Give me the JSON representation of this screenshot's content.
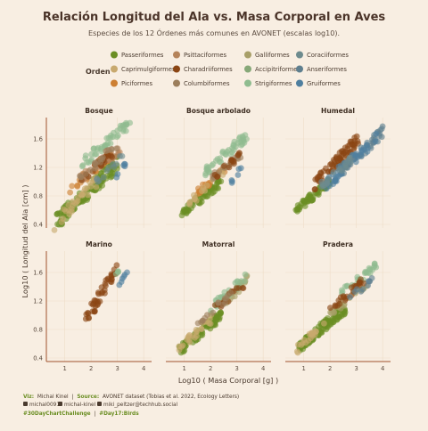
{
  "title": "Relación Longitud del Ala vs. Masa Corporal en Aves",
  "subtitle": "Especies de los 12 Órdenes más comunes en AVONET (escalas log10).",
  "legend": {
    "title": "Orden",
    "items": [
      {
        "label": "Passeriformes",
        "color": "#6b8e23"
      },
      {
        "label": "Psittaciformes",
        "color": "#b5835a"
      },
      {
        "label": "Galliformes",
        "color": "#a89f68"
      },
      {
        "label": "Coraciiformes",
        "color": "#6e8b8e"
      },
      {
        "label": "Caprimulgiformes",
        "color": "#c8a96e"
      },
      {
        "label": "Charadriiformes",
        "color": "#8b4513"
      },
      {
        "label": "Accipitriformes",
        "color": "#87a878"
      },
      {
        "label": "Anseriformes",
        "color": "#5f7f8f"
      },
      {
        "label": "Piciformes",
        "color": "#cd7f32"
      },
      {
        "label": "Columbiformes",
        "color": "#9c7e5c"
      },
      {
        "label": "Strigiformes",
        "color": "#8fbc8f"
      },
      {
        "label": "Gruiformes",
        "color": "#4f7f9f"
      }
    ]
  },
  "axes": {
    "xlabel": "Log10 ( Masa Corporal [g] )",
    "ylabel": "Log10 ( Longitud del Ala [cm] )",
    "x_ticks": [
      "1",
      "2",
      "3",
      "4"
    ],
    "y_ticks": [
      "0.4",
      "0.8",
      "1.2",
      "1.6"
    ]
  },
  "caption": {
    "viz_label": "Viz:",
    "viz_author": "Michal Kinel",
    "source_label": "Source:",
    "source_text": "AVONET dataset (Tobias et al. 2022, Ecology Letters)",
    "github": "michal0091",
    "linkedin": "michal-kinel",
    "mastodon": "miki_peltzer@techhub.social",
    "hashtag1": "#30DayChartChallenge",
    "hashtag2": "#Day17:Birds"
  },
  "chart_data": {
    "type": "scatter",
    "xlabel": "Log10 ( Masa Corporal [g] )",
    "ylabel": "Log10 ( Longitud del Ala [cm] )",
    "xlim": [
      0.3,
      4.3
    ],
    "ylim": [
      0.35,
      1.9
    ],
    "grid": true,
    "legend_position": "top",
    "panels": [
      {
        "name": "Bosque",
        "groups": [
          {
            "order": "Passeriformes",
            "x": [
              0.7,
              3.0
            ],
            "y": [
              0.45,
              1.25
            ],
            "n": 120
          },
          {
            "order": "Caprimulgiformes",
            "x": [
              0.6,
              2.2
            ],
            "y": [
              0.4,
              1.0
            ],
            "n": 30
          },
          {
            "order": "Piciformes",
            "x": [
              1.2,
              2.8
            ],
            "y": [
              0.9,
              1.4
            ],
            "n": 35
          },
          {
            "order": "Psittaciformes",
            "x": [
              1.6,
              3.1
            ],
            "y": [
              1.05,
              1.45
            ],
            "n": 35
          },
          {
            "order": "Strigiformes",
            "x": [
              1.6,
              3.6
            ],
            "y": [
              1.25,
              1.85
            ],
            "n": 45
          },
          {
            "order": "Charadriiformes",
            "x": [
              1.5,
              2.8
            ],
            "y": [
              1.0,
              1.4
            ],
            "n": 20
          },
          {
            "order": "Columbiformes",
            "x": [
              1.5,
              3.0
            ],
            "y": [
              1.05,
              1.5
            ],
            "n": 20
          },
          {
            "order": "Coraciiformes",
            "x": [
              2.2,
              3.2
            ],
            "y": [
              1.0,
              1.35
            ],
            "n": 12
          },
          {
            "order": "Gruiformes",
            "x": [
              2.9,
              3.3
            ],
            "y": [
              1.05,
              1.25
            ],
            "n": 6
          }
        ]
      },
      {
        "name": "Bosque arbolado",
        "groups": [
          {
            "order": "Passeriformes",
            "x": [
              0.9,
              2.4
            ],
            "y": [
              0.55,
              1.0
            ],
            "n": 60
          },
          {
            "order": "Piciformes",
            "x": [
              1.5,
              2.6
            ],
            "y": [
              0.85,
              1.2
            ],
            "n": 25
          },
          {
            "order": "Caprimulgiformes",
            "x": [
              1.2,
              2.5
            ],
            "y": [
              0.7,
              1.15
            ],
            "n": 20
          },
          {
            "order": "Strigiformes",
            "x": [
              1.8,
              3.4
            ],
            "y": [
              1.15,
              1.65
            ],
            "n": 45
          },
          {
            "order": "Columbiformes",
            "x": [
              2.0,
              3.2
            ],
            "y": [
              1.05,
              1.4
            ],
            "n": 20
          },
          {
            "order": "Charadriiformes",
            "x": [
              2.0,
              3.2
            ],
            "y": [
              1.0,
              1.4
            ],
            "n": 15
          },
          {
            "order": "Gruiformes",
            "x": [
              2.8,
              3.4
            ],
            "y": [
              1.0,
              1.3
            ],
            "n": 6
          }
        ]
      },
      {
        "name": "Humedal",
        "groups": [
          {
            "order": "Passeriformes",
            "x": [
              0.7,
              2.0
            ],
            "y": [
              0.6,
              1.0
            ],
            "n": 60
          },
          {
            "order": "Charadriiformes",
            "x": [
              1.4,
              3.1
            ],
            "y": [
              0.95,
              1.6
            ],
            "n": 70
          },
          {
            "order": "Anseriformes",
            "x": [
              2.4,
              4.0
            ],
            "y": [
              1.15,
              1.7
            ],
            "n": 50
          },
          {
            "order": "Gruiformes",
            "x": [
              1.8,
              3.8
            ],
            "y": [
              0.95,
              1.6
            ],
            "n": 40
          },
          {
            "order": "Coraciiformes",
            "x": [
              1.5,
              2.8
            ],
            "y": [
              0.9,
              1.3
            ],
            "n": 20
          }
        ]
      },
      {
        "name": "Marino",
        "groups": [
          {
            "order": "Charadriiformes",
            "x": [
              1.8,
              3.0
            ],
            "y": [
              0.95,
              1.65
            ],
            "n": 45
          },
          {
            "order": "Gruiformes",
            "x": [
              3.0,
              3.4
            ],
            "y": [
              1.4,
              1.6
            ],
            "n": 6
          },
          {
            "order": "Strigiformes",
            "x": [
              2.9,
              3.1
            ],
            "y": [
              1.55,
              1.65
            ],
            "n": 4
          }
        ]
      },
      {
        "name": "Matorral",
        "groups": [
          {
            "order": "Passeriformes",
            "x": [
              0.8,
              2.4
            ],
            "y": [
              0.5,
              1.0
            ],
            "n": 80
          },
          {
            "order": "Caprimulgiformes",
            "x": [
              0.8,
              2.2
            ],
            "y": [
              0.55,
              1.0
            ],
            "n": 25
          },
          {
            "order": "Galliformes",
            "x": [
              2.0,
              3.4
            ],
            "y": [
              1.0,
              1.5
            ],
            "n": 25
          },
          {
            "order": "Strigiformes",
            "x": [
              2.0,
              3.4
            ],
            "y": [
              1.1,
              1.55
            ],
            "n": 25
          },
          {
            "order": "Charadriiformes",
            "x": [
              2.0,
              3.4
            ],
            "y": [
              1.05,
              1.45
            ],
            "n": 15
          },
          {
            "order": "Columbiformes",
            "x": [
              1.5,
              2.8
            ],
            "y": [
              0.9,
              1.3
            ],
            "n": 15
          }
        ]
      },
      {
        "name": "Pradera",
        "groups": [
          {
            "order": "Passeriformes",
            "x": [
              0.8,
              2.6
            ],
            "y": [
              0.55,
              1.1
            ],
            "n": 110
          },
          {
            "order": "Caprimulgiformes",
            "x": [
              0.7,
              1.8
            ],
            "y": [
              0.5,
              0.9
            ],
            "n": 20
          },
          {
            "order": "Galliformes",
            "x": [
              2.0,
              3.4
            ],
            "y": [
              1.0,
              1.45
            ],
            "n": 25
          },
          {
            "order": "Strigiformes",
            "x": [
              2.4,
              3.8
            ],
            "y": [
              1.3,
              1.7
            ],
            "n": 30
          },
          {
            "order": "Charadriiformes",
            "x": [
              2.0,
              3.3
            ],
            "y": [
              1.05,
              1.5
            ],
            "n": 25
          },
          {
            "order": "Anseriformes",
            "x": [
              2.6,
              3.6
            ],
            "y": [
              1.2,
              1.5
            ],
            "n": 10
          }
        ]
      }
    ]
  }
}
